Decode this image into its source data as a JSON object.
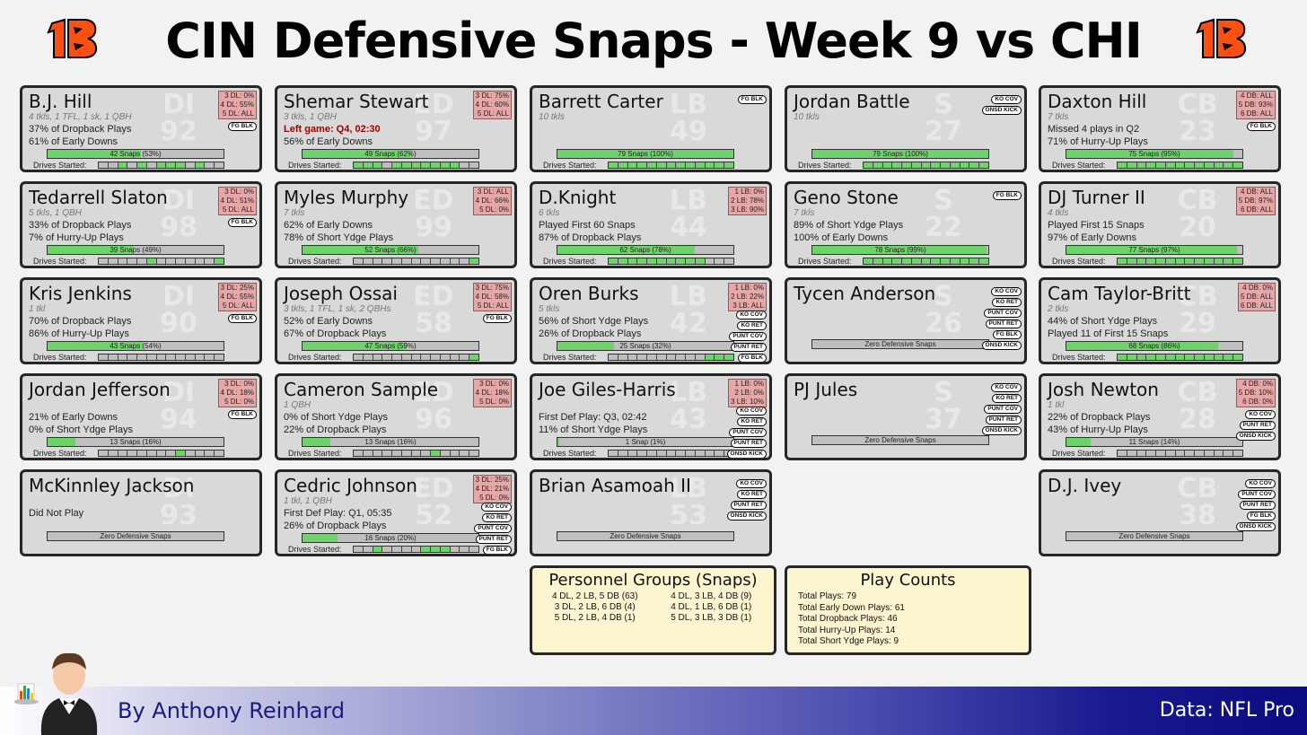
{
  "title": "CIN Defensive Snaps - Week 9 vs CHI",
  "colors": {
    "orange": "#fb4f14",
    "bar_green": "#6fd36b",
    "bar_grey": "#bfbfbf",
    "card_bg": "#d9d9d9",
    "subbox_red": "#e8a7a7",
    "summary_bg": "#fdf5d0"
  },
  "players": [
    {
      "col": 0,
      "row": 0,
      "name": "B.J. Hill",
      "pos": "DI",
      "num": "92",
      "tkls": "4 tkls, 1 TFL, 1 sk, 1 QBH",
      "line1": "37% of Dropback Plays",
      "line2": "61% of Early Downs",
      "snaps_label": "42 Snaps (53%)",
      "snap_pct": 53,
      "sub": [
        "3 DL: 0%",
        "4 DL: 55%",
        "5 DL: ALL"
      ],
      "tags": [
        "FG BLK"
      ],
      "drives": [
        0,
        0,
        1,
        0,
        1,
        0,
        1,
        1,
        1,
        0,
        1,
        0,
        0
      ]
    },
    {
      "col": 0,
      "row": 1,
      "name": "Tedarrell Slaton",
      "pos": "DI",
      "num": "98",
      "tkls": "5 tkls, 1 QBH",
      "line1": "33% of Dropback Plays",
      "line2": "7% of Hurry-Up Plays",
      "snaps_label": "39 Snaps (49%)",
      "snap_pct": 49,
      "sub": [
        "3 DL: 0%",
        "4 DL: 51%",
        "5 DL: ALL"
      ],
      "tags": [
        "FG BLK"
      ],
      "drives": [
        0,
        0,
        0,
        0,
        0,
        1,
        0,
        0,
        0,
        0,
        0,
        0,
        1
      ]
    },
    {
      "col": 0,
      "row": 2,
      "name": "Kris Jenkins",
      "pos": "DI",
      "num": "90",
      "tkls": "1 tkl",
      "line1": "70% of Dropback Plays",
      "line2": "86% of Hurry-Up Plays",
      "snaps_label": "43 Snaps (54%)",
      "snap_pct": 54,
      "sub": [
        "3 DL: 25%",
        "4 DL: 55%",
        "5 DL: ALL"
      ],
      "tags": [
        "FG BLK"
      ],
      "drives": [
        0,
        0,
        0,
        0,
        0,
        0,
        0,
        0,
        0,
        0,
        0,
        0,
        0
      ]
    },
    {
      "col": 0,
      "row": 3,
      "name": "Jordan Jefferson",
      "pos": "DI",
      "num": "94",
      "tkls": "",
      "line1": "21% of Early Downs",
      "line2": "0% of Short Ydge Plays",
      "snaps_label": "13 Snaps (16%)",
      "snap_pct": 16,
      "sub": [
        "3 DL: 0%",
        "4 DL: 18%",
        "5 DL: 0%"
      ],
      "tags": [
        "FG BLK"
      ],
      "drives": [
        0,
        0,
        0,
        0,
        0,
        0,
        0,
        0,
        1,
        0,
        0,
        0,
        0
      ]
    },
    {
      "col": 0,
      "row": 4,
      "name": "McKinnley Jackson",
      "pos": "DI",
      "num": "93",
      "tkls": "",
      "line1": "Did Not Play",
      "line2": "",
      "snaps_label": "Zero Defensive Snaps",
      "snap_pct": 0,
      "sub": [],
      "tags": [],
      "drives": []
    },
    {
      "col": 1,
      "row": 0,
      "name": "Shemar Stewart",
      "pos": "ED",
      "num": "97",
      "tkls": "3 tkls, 1 QBH",
      "line1": "Left game: Q4, 02:30",
      "line1_red": true,
      "line2": "56% of Early Downs",
      "snaps_label": "49 Snaps (62%)",
      "snap_pct": 62,
      "sub": [
        "3 DL: 75%",
        "4 DL: 60%",
        "5 DL: ALL"
      ],
      "tags": [],
      "drives": [
        1,
        1,
        1,
        0,
        1,
        1,
        1,
        1,
        1,
        1,
        1,
        0,
        0
      ]
    },
    {
      "col": 1,
      "row": 1,
      "name": "Myles Murphy",
      "pos": "ED",
      "num": "99",
      "tkls": "7 tkls",
      "line1": "62% of Early Downs",
      "line2": "78% of Short Ydge Plays",
      "snaps_label": "52 Snaps (66%)",
      "snap_pct": 66,
      "sub": [
        "3 DL: ALL",
        "4 DL: 66%",
        "5 DL: 0%"
      ],
      "tags": [],
      "drives": [
        0,
        0,
        0,
        0,
        0,
        0,
        0,
        0,
        0,
        0,
        0,
        0,
        1
      ]
    },
    {
      "col": 1,
      "row": 2,
      "name": "Joseph Ossai",
      "pos": "ED",
      "num": "58",
      "tkls": "3 tkls, 1 TFL, 1 sk, 2 QBHs",
      "line1": "52% of Early Downs",
      "line2": "67% of Dropback Plays",
      "snaps_label": "47 Snaps (59%)",
      "snap_pct": 59,
      "sub": [
        "3 DL: 75%",
        "4 DL: 58%",
        "5 DL: ALL"
      ],
      "tags": [
        "FG BLK"
      ],
      "drives": [
        0,
        0,
        0,
        0,
        0,
        0,
        0,
        0,
        0,
        0,
        0,
        0,
        1
      ]
    },
    {
      "col": 1,
      "row": 3,
      "name": "Cameron Sample",
      "pos": "ED",
      "num": "96",
      "tkls": "1 QBH",
      "line1": "0% of Short Ydge Plays",
      "line2": "22% of Dropback Plays",
      "snaps_label": "13 Snaps (16%)",
      "snap_pct": 16,
      "sub": [
        "3 DL: 0%",
        "4 DL: 18%",
        "5 DL: 0%"
      ],
      "tags": [],
      "drives": [
        0,
        0,
        0,
        0,
        0,
        0,
        0,
        0,
        1,
        0,
        0,
        0,
        0
      ]
    },
    {
      "col": 1,
      "row": 4,
      "name": "Cedric Johnson",
      "pos": "ED",
      "num": "52",
      "tkls": "1 tkl, 1 QBH",
      "line1": "First Def Play: Q1, 05:35",
      "line2": "26% of Dropback Plays",
      "snaps_label": "16 Snaps (20%)",
      "snap_pct": 20,
      "sub": [
        "3 DL: 25%",
        "4 DL: 21%",
        "5 DL: 0%"
      ],
      "tags": [
        "KO COV",
        "KO RET",
        "PUNT COV",
        "PUNT RET",
        "FG BLK"
      ],
      "drives": [
        0,
        0,
        1,
        0,
        0,
        0,
        0,
        1,
        1,
        1,
        0,
        0,
        0
      ]
    },
    {
      "col": 2,
      "row": 0,
      "name": "Barrett Carter",
      "pos": "LB",
      "num": "49",
      "tkls": "10 tkls",
      "line1": "",
      "line2": "",
      "snaps_label": "79 Snaps (100%)",
      "snap_pct": 100,
      "sub": [],
      "tags": [
        "FG BLK"
      ],
      "drives": [
        1,
        1,
        1,
        1,
        1,
        1,
        1,
        1,
        1,
        1,
        1,
        1,
        1
      ]
    },
    {
      "col": 2,
      "row": 1,
      "name": "D.Knight",
      "pos": "LB",
      "num": "44",
      "tkls": "6 tkls",
      "line1": "Played First 60 Snaps",
      "line2": "87% of Dropback Plays",
      "snaps_label": "62 Snaps (78%)",
      "snap_pct": 78,
      "sub": [
        "1 LB: 0%",
        "2 LB: 78%",
        "3 LB: 90%"
      ],
      "tags": [],
      "drives": [
        1,
        1,
        1,
        1,
        1,
        1,
        1,
        1,
        1,
        1,
        0,
        0,
        0
      ]
    },
    {
      "col": 2,
      "row": 2,
      "name": "Oren Burks",
      "pos": "LB",
      "num": "42",
      "tkls": "5 tkls",
      "line1": "56% of Short Ydge Plays",
      "line2": "26% of Dropback Plays",
      "snaps_label": "25 Snaps (32%)",
      "snap_pct": 32,
      "sub": [
        "1 LB: 0%",
        "2 LB: 22%",
        "3 LB: ALL"
      ],
      "tags": [
        "KO COV",
        "KO RET",
        "PUNT COV",
        "PUNT RET",
        "FG BLK",
        "ONSD KICK"
      ],
      "drives": [
        0,
        0,
        0,
        0,
        0,
        0,
        0,
        0,
        0,
        0,
        1,
        1,
        1
      ]
    },
    {
      "col": 2,
      "row": 3,
      "name": "Joe Giles-Harris",
      "pos": "LB",
      "num": "43",
      "tkls": "",
      "line1": "First Def Play: Q3, 02:42",
      "line2": "11% of Short Ydge Plays",
      "snaps_label": "1 Snap (1%)",
      "snap_pct": 1,
      "sub": [
        "1 LB: 0%",
        "2 LB: 0%",
        "3 LB: 10%"
      ],
      "tags": [
        "KO COV",
        "KO RET",
        "PUNT COV",
        "PUNT RET",
        "ONSD KICK"
      ],
      "drives": [
        0,
        0,
        0,
        0,
        0,
        0,
        0,
        0,
        0,
        0,
        0,
        0,
        0
      ]
    },
    {
      "col": 2,
      "row": 4,
      "name": "Brian Asamoah II",
      "pos": "LB",
      "num": "53",
      "tkls": "",
      "line1": "",
      "line2": "",
      "snaps_label": "Zero Defensive Snaps",
      "snap_pct": 0,
      "sub": [],
      "tags": [
        "KO COV",
        "KO RET",
        "PUNT RET",
        "ONSD KICK"
      ],
      "drives": []
    },
    {
      "col": 3,
      "row": 0,
      "name": "Jordan Battle",
      "pos": "S",
      "num": "27",
      "tkls": "10 tkls",
      "line1": "",
      "line2": "",
      "snaps_label": "79 Snaps (100%)",
      "snap_pct": 100,
      "sub": [],
      "tags": [
        "KO COV",
        "ONSD KICK"
      ],
      "drives": [
        1,
        1,
        1,
        1,
        1,
        1,
        1,
        1,
        1,
        1,
        1,
        1,
        1
      ]
    },
    {
      "col": 3,
      "row": 1,
      "name": "Geno Stone",
      "pos": "S",
      "num": "22",
      "tkls": "7 tkls",
      "line1": "89% of Short Ydge Plays",
      "line2": "100% of Early Downs",
      "snaps_label": "78 Snaps (99%)",
      "snap_pct": 99,
      "sub": [],
      "tags": [
        "FG BLK"
      ],
      "drives": [
        1,
        1,
        1,
        1,
        1,
        1,
        1,
        1,
        1,
        1,
        1,
        1,
        1
      ]
    },
    {
      "col": 3,
      "row": 2,
      "name": "Tycen Anderson",
      "pos": "S",
      "num": "26",
      "tkls": "",
      "line1": "",
      "line2": "",
      "snaps_label": "Zero Defensive Snaps",
      "snap_pct": 0,
      "sub": [],
      "tags": [
        "KO COV",
        "KO RET",
        "PUNT COV",
        "PUNT RET",
        "FG BLK",
        "ONSD KICK"
      ],
      "drives": []
    },
    {
      "col": 3,
      "row": 3,
      "name": "PJ Jules",
      "pos": "S",
      "num": "37",
      "tkls": "",
      "line1": "",
      "line2": "",
      "snaps_label": "Zero Defensive Snaps",
      "snap_pct": 0,
      "sub": [],
      "tags": [
        "KO COV",
        "KO RET",
        "PUNT COV",
        "PUNT RET",
        "ONSD KICK"
      ],
      "drives": []
    },
    {
      "col": 4,
      "row": 0,
      "name": "Daxton Hill",
      "pos": "CB",
      "num": "23",
      "tkls": "7 tkls",
      "line1": "Missed 4 plays in Q2",
      "line2": "71% of Hurry-Up Plays",
      "snaps_label": "75 Snaps (95%)",
      "snap_pct": 95,
      "sub": [
        "4 DB: ALL",
        "5 DB: 93%",
        "6 DB: ALL"
      ],
      "tags": [
        "FG BLK"
      ],
      "drives": [
        1,
        1,
        1,
        1,
        1,
        1,
        1,
        1,
        1,
        1,
        1,
        1,
        1
      ]
    },
    {
      "col": 4,
      "row": 1,
      "name": "DJ Turner II",
      "pos": "CB",
      "num": "20",
      "tkls": "4 tkls",
      "line1": "Played First 15 Snaps",
      "line2": "97% of Early Downs",
      "snaps_label": "77 Snaps (97%)",
      "snap_pct": 97,
      "sub": [
        "4 DB: ALL",
        "5 DB: 97%",
        "6 DB: ALL"
      ],
      "tags": [],
      "drives": [
        1,
        1,
        1,
        1,
        1,
        1,
        1,
        1,
        1,
        1,
        1,
        1,
        1
      ]
    },
    {
      "col": 4,
      "row": 2,
      "name": "Cam Taylor-Britt",
      "pos": "CB",
      "num": "29",
      "tkls": "2 tkls",
      "line1": "44% of Short Ydge Plays",
      "line2": "Played 11 of First 15 Snaps",
      "snaps_label": "68 Snaps (86%)",
      "snap_pct": 86,
      "sub": [
        "4 DB: 0%",
        "5 DB: ALL",
        "6 DB: ALL"
      ],
      "tags": [],
      "drives": [
        1,
        1,
        1,
        1,
        1,
        1,
        1,
        1,
        1,
        1,
        1,
        1,
        1
      ]
    },
    {
      "col": 4,
      "row": 3,
      "name": "Josh Newton",
      "pos": "CB",
      "num": "28",
      "tkls": "1 tkl",
      "line1": "22% of Dropback Plays",
      "line2": "43% of Hurry-Up Plays",
      "snaps_label": "11 Snaps (14%)",
      "snap_pct": 14,
      "sub": [
        "4 DB: 0%",
        "5 DB: 10%",
        "6 DB: 0%"
      ],
      "tags": [
        "KO COV",
        "PUNT RET",
        "ONSD KICK"
      ],
      "drives": [
        0,
        0,
        0,
        0,
        0,
        0,
        0,
        0,
        0,
        0,
        0,
        0,
        0
      ]
    },
    {
      "col": 4,
      "row": 4,
      "name": "D.J. Ivey",
      "pos": "CB",
      "num": "38",
      "tkls": "",
      "line1": "",
      "line2": "",
      "snaps_label": "Zero Defensive Snaps",
      "snap_pct": 0,
      "sub": [],
      "tags": [
        "KO COV",
        "PUNT COV",
        "PUNT RET",
        "FG BLK",
        "ONSD KICK"
      ],
      "drives": []
    }
  ],
  "drives_label": "Drives Started:",
  "personnel": {
    "title": "Personnel Groups (Snaps)",
    "items": [
      "4 DL, 2 LB, 5 DB (63)",
      "4 DL, 3 LB, 4 DB (9)",
      "3 DL, 2 LB, 6 DB (4)",
      "4 DL, 1 LB, 6 DB (1)",
      "5 DL, 2 LB, 4 DB (1)",
      "5 DL, 3 LB, 3 DB (1)"
    ]
  },
  "play_counts": {
    "title": "Play Counts",
    "items": [
      "Total Plays: 79",
      "Total Early Down Plays: 61",
      "Total Dropback Plays: 46",
      "Total Hurry-Up Plays: 14",
      "Total Short Ydge Plays: 9"
    ]
  },
  "footer": {
    "byline": "By Anthony Reinhard",
    "source": "Data: NFL Pro"
  }
}
